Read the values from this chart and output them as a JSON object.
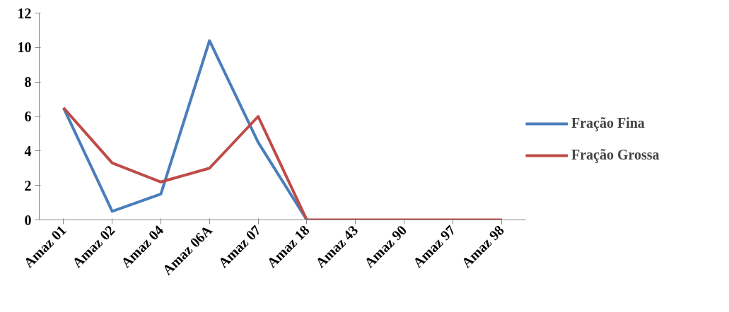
{
  "chart_data": {
    "type": "line",
    "categories": [
      "Amaz 01",
      "Amaz 02",
      "Amaz 04",
      "Amaz 06A",
      "Amaz 07",
      "Amaz 18",
      "Amaz 43",
      "Amaz 90",
      "Amaz 97",
      "Amaz 98"
    ],
    "series": [
      {
        "name": "Fração Fina",
        "color": "#4a7ebb",
        "values": [
          6.5,
          0.5,
          1.5,
          10.4,
          4.5,
          0,
          null,
          null,
          null,
          null
        ]
      },
      {
        "name": "Fração Grossa",
        "color": "#be4b48",
        "values": [
          6.5,
          3.3,
          2.2,
          3.0,
          6.0,
          0,
          0,
          0,
          0,
          0
        ]
      }
    ],
    "ylim": [
      0,
      12
    ],
    "yticks": [
      0,
      2,
      4,
      6,
      8,
      10,
      12
    ],
    "grid": false,
    "legend": "right",
    "marker": "none",
    "line_style": "solid"
  }
}
